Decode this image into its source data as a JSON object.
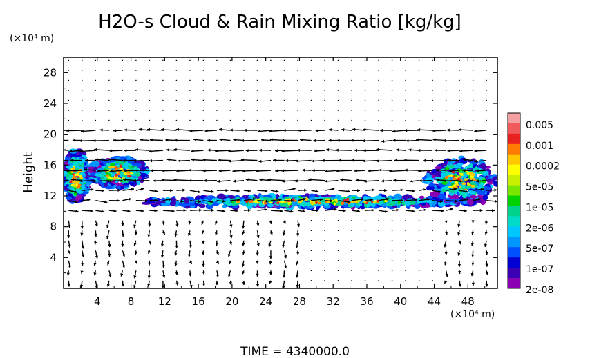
{
  "chart_data": {
    "type": "heatmap",
    "title": "H2O-s Cloud & Rain Mixing Ratio [kg/kg]",
    "ylabel": "Height",
    "y_unit": "(×10⁴ m)",
    "x_unit": "(×10⁴ m)",
    "xlim": [
      0,
      51.5
    ],
    "ylim": [
      0,
      30
    ],
    "x_ticks": [
      "4",
      "8",
      "12",
      "16",
      "20",
      "24",
      "28",
      "32",
      "36",
      "40",
      "44",
      "48"
    ],
    "y_ticks": [
      "4",
      "8",
      "12",
      "16",
      "20",
      "24",
      "28"
    ],
    "colorbar": {
      "labels": [
        "0.005",
        "0.001",
        "0.0002",
        "5e-05",
        "1e-05",
        "2e-06",
        "5e-07",
        "1e-07",
        "2e-08"
      ],
      "colors": [
        "#f4a0a0",
        "#f05a5a",
        "#e8201e",
        "#ff7a00",
        "#ffc800",
        "#ffff00",
        "#c8f000",
        "#78e600",
        "#00d200",
        "#00d28c",
        "#00dcc8",
        "#00c8ff",
        "#0096ff",
        "#0050ff",
        "#0000d2",
        "#3c00b4",
        "#8c00b4"
      ]
    },
    "regions": [
      {
        "name": "left-cloud",
        "x": [
          0,
          3
        ],
        "y": [
          11,
          18
        ]
      },
      {
        "name": "left-upper-cloud",
        "x": [
          3,
          10
        ],
        "y": [
          13,
          17
        ]
      },
      {
        "name": "thin-layer",
        "x": [
          9,
          50
        ],
        "y": [
          10.5,
          12
        ]
      },
      {
        "name": "right-cloud",
        "x": [
          43,
          51.5
        ],
        "y": [
          11,
          17
        ]
      }
    ],
    "footer": "TIME = 4340000.0"
  }
}
